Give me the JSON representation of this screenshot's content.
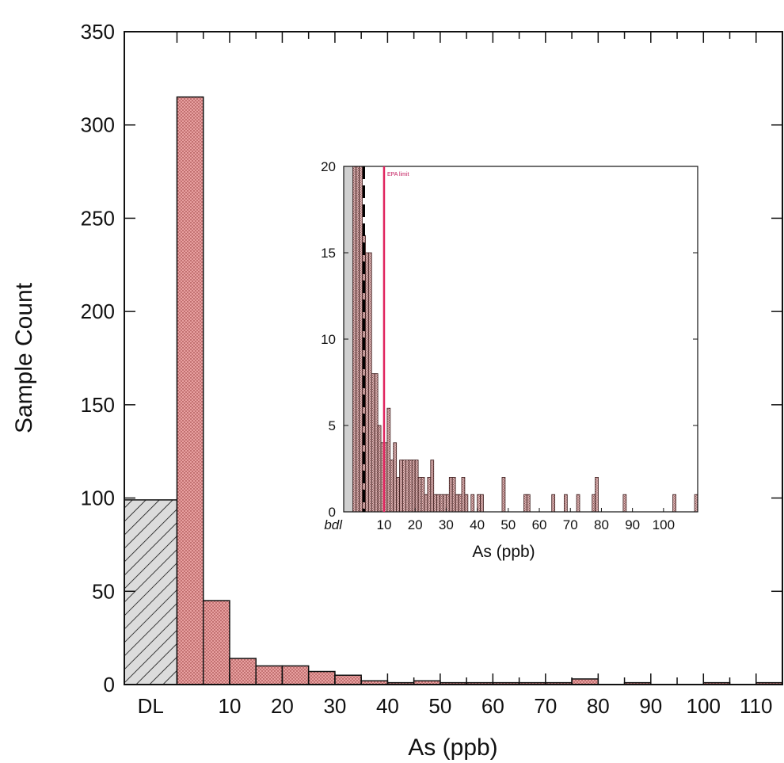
{
  "chart_data": [
    {
      "type": "bar",
      "xlabel": "As (ppb)",
      "ylabel": "Sample Count",
      "ylim": [
        0,
        350
      ],
      "yticks": [
        0,
        50,
        100,
        150,
        200,
        250,
        300,
        350
      ],
      "xlim": [
        -10,
        115
      ],
      "xtick_labels": [
        {
          "x": -5,
          "label": "DL"
        },
        {
          "x": 10,
          "label": "10"
        },
        {
          "x": 20,
          "label": "20"
        },
        {
          "x": 30,
          "label": "30"
        },
        {
          "x": 40,
          "label": "40"
        },
        {
          "x": 50,
          "label": "50"
        },
        {
          "x": 60,
          "label": "60"
        },
        {
          "x": 70,
          "label": "70"
        },
        {
          "x": 80,
          "label": "80"
        },
        {
          "x": 90,
          "label": "90"
        },
        {
          "x": 100,
          "label": "100"
        },
        {
          "x": 110,
          "label": "110"
        }
      ],
      "bdl_bar": {
        "x0": -10,
        "x1": 0,
        "value": 99,
        "color": "#dcdcdc"
      },
      "bin_width": 5,
      "bin_starts": [
        0,
        5,
        10,
        15,
        20,
        25,
        30,
        35,
        40,
        45,
        50,
        55,
        60,
        65,
        70,
        75,
        80,
        85,
        90,
        95,
        100,
        105,
        110
      ],
      "values": [
        315,
        45,
        14,
        10,
        10,
        7,
        5,
        2,
        1,
        2,
        1,
        1,
        1,
        1,
        1,
        3,
        0,
        1,
        0,
        0,
        1,
        0,
        1
      ],
      "bar_color": "#e8a0a0",
      "grid": false
    },
    {
      "type": "bar",
      "xlabel": "As (ppb)",
      "ylim": [
        0,
        20
      ],
      "yticks": [
        0,
        5,
        10,
        15,
        20
      ],
      "xlim": [
        -3,
        111
      ],
      "xtick_labels": [
        {
          "x": -1.5,
          "label": "bdl"
        },
        {
          "x": 10,
          "label": "10"
        },
        {
          "x": 20,
          "label": "20"
        },
        {
          "x": 30,
          "label": "30"
        },
        {
          "x": 40,
          "label": "40"
        },
        {
          "x": 50,
          "label": "50"
        },
        {
          "x": 60,
          "label": "60"
        },
        {
          "x": 70,
          "label": "70"
        },
        {
          "x": 80,
          "label": "80"
        },
        {
          "x": 90,
          "label": "90"
        },
        {
          "x": 100,
          "label": "100"
        }
      ],
      "bdl_bar": {
        "x0": -3,
        "x1": 0,
        "value": 20,
        "color": "#d0d0d0"
      },
      "bar_width": 1,
      "x": [
        0,
        1,
        2,
        3,
        4,
        5,
        6,
        7,
        8,
        9,
        10,
        11,
        12,
        13,
        14,
        15,
        16,
        17,
        18,
        19,
        20,
        21,
        22,
        23,
        24,
        25,
        26,
        27,
        28,
        29,
        30,
        31,
        32,
        33,
        34,
        35,
        36,
        38,
        40,
        41,
        48,
        55,
        56,
        64,
        68,
        72,
        77,
        78,
        87,
        103,
        110
      ],
      "values": [
        20,
        20,
        20,
        16,
        15,
        15,
        8,
        8,
        5,
        4,
        4,
        6,
        3,
        4,
        2,
        3,
        3,
        3,
        3,
        3,
        3,
        2,
        2,
        1,
        2,
        3,
        1,
        1,
        1,
        1,
        1,
        2,
        2,
        1,
        1,
        2,
        1,
        1,
        1,
        1,
        2,
        1,
        1,
        1,
        1,
        1,
        1,
        2,
        1,
        1,
        1
      ],
      "bar_color": "#c99a9a",
      "reference_line": {
        "x": 10,
        "label": "EPA limit",
        "color": "#e0245e"
      },
      "secondary_line": {
        "x": 3.5,
        "style": "dashed",
        "color": "#000000"
      },
      "grid": false
    }
  ]
}
